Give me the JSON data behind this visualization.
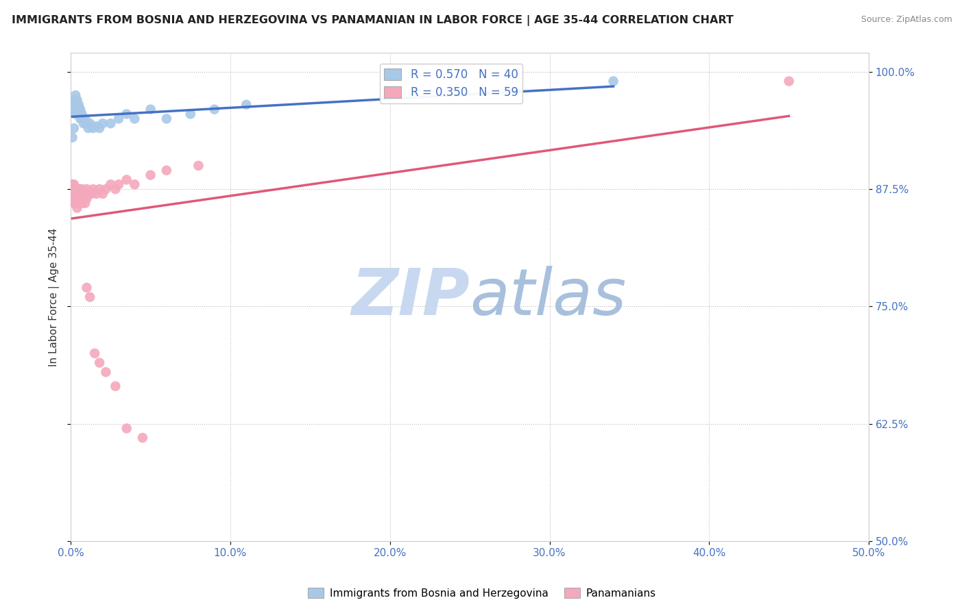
{
  "title": "IMMIGRANTS FROM BOSNIA AND HERZEGOVINA VS PANAMANIAN IN LABOR FORCE | AGE 35-44 CORRELATION CHART",
  "source": "Source: ZipAtlas.com",
  "ylabel_label": "In Labor Force | Age 35-44",
  "legend_bosnia_label": "Immigrants from Bosnia and Herzegovina",
  "legend_panama_label": "Panamanians",
  "bosnia_R": 0.57,
  "bosnia_N": 40,
  "panama_R": 0.35,
  "panama_N": 59,
  "bosnia_color": "#a8c8e8",
  "panama_color": "#f4a8bc",
  "bosnia_line_color": "#4472c4",
  "panama_line_color": "#e05878",
  "background_color": "#ffffff",
  "watermark_zip": "ZIP",
  "watermark_atlas": "atlas",
  "watermark_color_zip": "#c8d8ee",
  "watermark_color_atlas": "#a0b8d8",
  "xlim": [
    0.0,
    0.5
  ],
  "ylim": [
    0.5,
    1.02
  ],
  "xticks": [
    0.0,
    0.1,
    0.2,
    0.3,
    0.4,
    0.5
  ],
  "yticks": [
    0.5,
    0.625,
    0.75,
    0.875,
    1.0
  ],
  "bosnia_x": [
    0.001,
    0.001,
    0.002,
    0.002,
    0.002,
    0.003,
    0.003,
    0.003,
    0.003,
    0.004,
    0.004,
    0.004,
    0.005,
    0.005,
    0.005,
    0.006,
    0.006,
    0.006,
    0.007,
    0.007,
    0.008,
    0.008,
    0.009,
    0.01,
    0.011,
    0.012,
    0.014,
    0.016,
    0.018,
    0.02,
    0.025,
    0.03,
    0.035,
    0.04,
    0.05,
    0.06,
    0.075,
    0.09,
    0.11,
    0.34
  ],
  "bosnia_y": [
    0.93,
    0.96,
    0.94,
    0.96,
    0.97,
    0.96,
    0.955,
    0.97,
    0.975,
    0.96,
    0.965,
    0.97,
    0.955,
    0.96,
    0.965,
    0.95,
    0.955,
    0.96,
    0.95,
    0.955,
    0.945,
    0.95,
    0.95,
    0.945,
    0.94,
    0.945,
    0.94,
    0.942,
    0.94,
    0.945,
    0.945,
    0.95,
    0.955,
    0.95,
    0.96,
    0.95,
    0.955,
    0.96,
    0.965,
    0.99
  ],
  "panama_x": [
    0.001,
    0.001,
    0.001,
    0.001,
    0.002,
    0.002,
    0.002,
    0.002,
    0.002,
    0.003,
    0.003,
    0.003,
    0.003,
    0.003,
    0.004,
    0.004,
    0.004,
    0.004,
    0.005,
    0.005,
    0.005,
    0.005,
    0.006,
    0.006,
    0.006,
    0.007,
    0.007,
    0.007,
    0.008,
    0.008,
    0.009,
    0.009,
    0.01,
    0.01,
    0.011,
    0.012,
    0.013,
    0.014,
    0.016,
    0.018,
    0.02,
    0.022,
    0.025,
    0.028,
    0.03,
    0.035,
    0.04,
    0.05,
    0.06,
    0.08,
    0.01,
    0.012,
    0.015,
    0.018,
    0.022,
    0.028,
    0.035,
    0.045,
    0.45
  ],
  "panama_y": [
    0.875,
    0.88,
    0.87,
    0.865,
    0.88,
    0.875,
    0.87,
    0.865,
    0.86,
    0.875,
    0.87,
    0.865,
    0.86,
    0.87,
    0.875,
    0.87,
    0.86,
    0.855,
    0.875,
    0.87,
    0.865,
    0.86,
    0.875,
    0.87,
    0.865,
    0.875,
    0.87,
    0.86,
    0.87,
    0.865,
    0.87,
    0.86,
    0.875,
    0.865,
    0.87,
    0.87,
    0.87,
    0.875,
    0.87,
    0.875,
    0.87,
    0.875,
    0.88,
    0.875,
    0.88,
    0.885,
    0.88,
    0.89,
    0.895,
    0.9,
    0.77,
    0.76,
    0.7,
    0.69,
    0.68,
    0.665,
    0.62,
    0.61,
    0.99
  ]
}
